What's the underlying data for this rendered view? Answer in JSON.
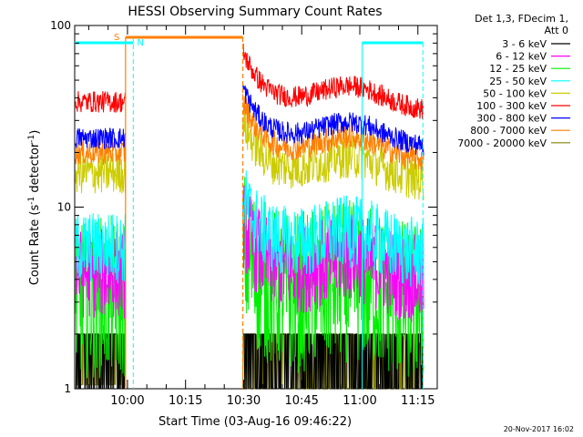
{
  "chart_data": {
    "type": "line",
    "title": "HESSI Observing Summary Count Rates",
    "xlabel": "Start Time (03-Aug-16 09:46:22)",
    "ylabel_main": "Count Rate (s",
    "ylabel_sup1": "-1",
    "ylabel_mid": " detector",
    "ylabel_sup2": "-1",
    "ylabel_end": ")",
    "yscale": "log",
    "ylim": [
      1,
      100
    ],
    "xlim_minutes": [
      -13.63,
      80
    ],
    "x_ticks": [
      "10:00",
      "10:15",
      "10:30",
      "10:45",
      "11:00",
      "11:15"
    ],
    "x_tick_minutes": [
      0,
      15,
      30,
      45,
      60,
      75
    ],
    "y_ticks": [
      "1",
      "10",
      "100"
    ],
    "legend_header": [
      "Det 1,3, FDecim 1,",
      "Att 0"
    ],
    "legend_position": "right",
    "timestamp": "20-Nov-2017 16:02",
    "gaps_minutes": [
      [
        -0.5,
        29.8
      ]
    ],
    "series": [
      {
        "name": "3 - 6 keV",
        "color": "#000000",
        "base": 1.5,
        "spread": 0.5
      },
      {
        "name": "6 - 12 keV",
        "color": "#ff00ff",
        "base": 4.3,
        "spread": 0.25
      },
      {
        "name": "12 - 25 keV",
        "color": "#00ee00",
        "base": 3.2,
        "spread": 0.45
      },
      {
        "name": "25 - 50 keV",
        "color": "#00ffff",
        "base": 6.0,
        "spread": 0.2
      },
      {
        "name": "50 - 100 keV",
        "color": "#cccc00",
        "base": 15.5,
        "spread": 0.12
      },
      {
        "name": "100 - 300 keV",
        "color": "#ff0000",
        "base": 38,
        "spread": 0.06
      },
      {
        "name": "300 - 800 keV",
        "color": "#0000ff",
        "base": 24,
        "spread": 0.06
      },
      {
        "name": "800 - 7000 keV",
        "color": "#ff7f00",
        "base": 20,
        "spread": 0.07
      },
      {
        "name": "7000 - 20000 keV",
        "color": "#808000",
        "base": 1.3,
        "spread": 0.3
      }
    ],
    "annotations": {
      "s_flag_label": "S",
      "n_flag_label": "N",
      "saa_color": "#ff7f00",
      "night_color": "#00ffff"
    }
  }
}
